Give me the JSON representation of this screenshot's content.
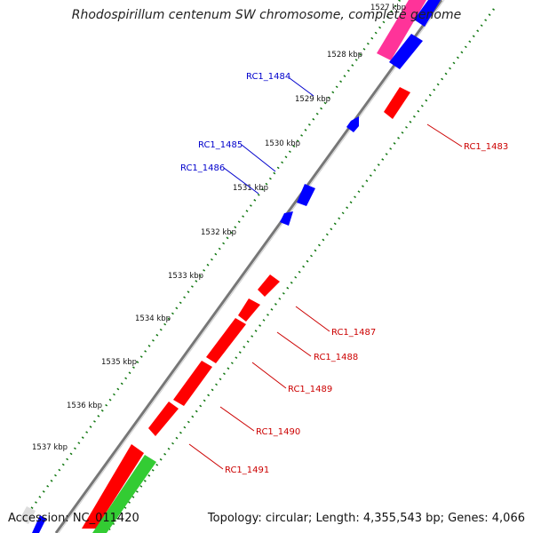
{
  "title": "Rhodospirillum centenum SW chromosome, complete genome",
  "footer": {
    "accession": "Accession: NC_011420",
    "summary": "Topology: circular; Length: 4,355,543 bp; Genes: 4,066"
  },
  "colors": {
    "backbone": "#808080",
    "forward_gene": "#0000ff",
    "reverse_gene": "#ff0000",
    "rna": "#33cc33",
    "misc": "#ff3399",
    "tick": "#007700",
    "forward_label": "#0000cc",
    "reverse_label": "#cc0000"
  },
  "ticks": [
    "1527 kbp",
    "1528 kbp",
    "1529 kbp",
    "1530 kbp",
    "1531 kbp",
    "1532 kbp",
    "1533 kbp",
    "1534 kbp",
    "1535 kbp",
    "1536 kbp",
    "1537 kbp"
  ],
  "forward_labels": [
    "RC1_1484",
    "RC1_1485",
    "RC1_1486"
  ],
  "reverse_labels": [
    "RC1_1483",
    "RC1_1487",
    "RC1_1488",
    "RC1_1489",
    "RC1_1490",
    "RC1_1491"
  ]
}
